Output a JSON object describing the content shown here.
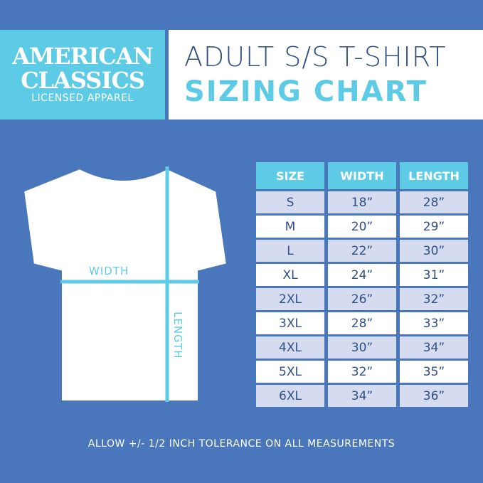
{
  "logo": {
    "line1": "AMERICAN",
    "line2": "CLASSICS",
    "line3": "LICENSED APPAREL"
  },
  "title": {
    "line1": "ADULT S/S T-SHIRT",
    "line2": "SIZING CHART"
  },
  "diagram": {
    "width_label": "WIDTH",
    "length_label": "LENGTH"
  },
  "table": {
    "headers": [
      "SIZE",
      "WIDTH",
      "LENGTH"
    ],
    "rows": [
      [
        "S",
        "18”",
        "28”"
      ],
      [
        "M",
        "20”",
        "29”"
      ],
      [
        "L",
        "22”",
        "30”"
      ],
      [
        "XL",
        "24”",
        "31”"
      ],
      [
        "2XL",
        "26”",
        "32”"
      ],
      [
        "3XL",
        "28”",
        "33”"
      ],
      [
        "4XL",
        "30”",
        "34”"
      ],
      [
        "5XL",
        "32”",
        "35”"
      ],
      [
        "6XL",
        "34”",
        "36”"
      ]
    ]
  },
  "footer": "ALLOW +/- 1/2 INCH TOLERANCE ON ALL MEASUREMENTS",
  "colors": {
    "background": "#4a76bb",
    "accent": "#5ecbe6",
    "text": "#2f4f86"
  }
}
